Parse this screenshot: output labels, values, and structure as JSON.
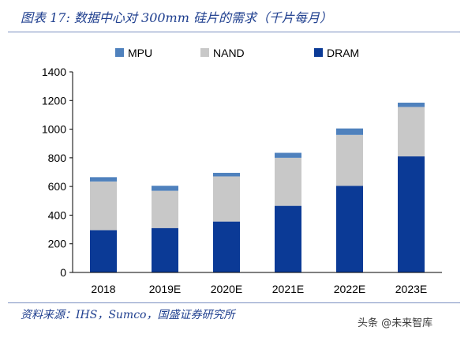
{
  "title": "图表 17: 数据中心对 300mm 硅片的需求（千片每月）",
  "source": "资料来源：IHS，Sumco，国盛证券研究所",
  "watermark": "头条 @未来智库",
  "chart_data": {
    "type": "bar",
    "stacked": true,
    "categories": [
      "2018",
      "2019E",
      "2020E",
      "2021E",
      "2022E",
      "2023E"
    ],
    "series": [
      {
        "name": "DRAM",
        "color": "#0b3a96",
        "values": [
          295,
          310,
          355,
          465,
          605,
          810
        ]
      },
      {
        "name": "NAND",
        "color": "#c8c8c8",
        "values": [
          340,
          260,
          315,
          335,
          355,
          345
        ]
      },
      {
        "name": "MPU",
        "color": "#4f81bd",
        "values": [
          30,
          35,
          25,
          35,
          45,
          30
        ]
      }
    ],
    "legend_order": [
      "MPU",
      "NAND",
      "DRAM"
    ],
    "legend_position": "top",
    "ylim": [
      0,
      1400
    ],
    "yticks": [
      0,
      200,
      400,
      600,
      800,
      1000,
      1200,
      1400
    ],
    "grid": false
  }
}
